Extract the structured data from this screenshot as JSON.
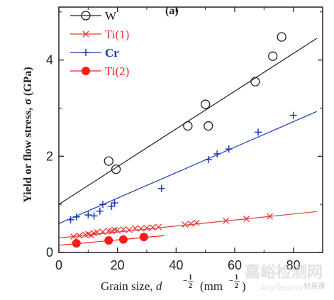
{
  "chart_data": {
    "type": "scatter",
    "panel_label": "(a)",
    "xlabel": "Grain size, d^-1/2 (mm^-1/2)",
    "xlabel_parts": {
      "main": "Grain size, ",
      "var": "d",
      "exp": "−",
      "frac_num": "1",
      "frac_den": "2",
      "unit_open": "(mm",
      "unit_close": ")"
    },
    "ylabel": "Yield or flow stress, σ (GPa)",
    "xlim": [
      0,
      90
    ],
    "ylim": [
      0,
      5.1
    ],
    "xticks": [
      0,
      20,
      40,
      60,
      80
    ],
    "yticks": [
      0,
      2,
      4
    ],
    "grid": false,
    "legend_position": "top-left",
    "series": [
      {
        "name": "W",
        "color": "#222222",
        "marker": "open-circle",
        "points": [
          [
            17,
            1.9
          ],
          [
            19.5,
            1.73
          ],
          [
            44,
            2.63
          ],
          [
            50,
            3.08
          ],
          [
            51,
            2.63
          ],
          [
            67,
            3.55
          ],
          [
            73,
            4.08
          ],
          [
            76,
            4.48
          ]
        ],
        "fit": [
          [
            0,
            1.0
          ],
          [
            88,
            4.45
          ]
        ]
      },
      {
        "name": "Ti(1)",
        "color": "#e53935",
        "marker": "x",
        "points": [
          [
            5,
            0.33
          ],
          [
            7,
            0.35
          ],
          [
            9,
            0.37
          ],
          [
            10,
            0.38
          ],
          [
            11,
            0.36
          ],
          [
            12,
            0.4
          ],
          [
            13,
            0.42
          ],
          [
            15,
            0.43
          ],
          [
            17,
            0.45
          ],
          [
            18,
            0.44
          ],
          [
            19,
            0.47
          ],
          [
            20,
            0.46
          ],
          [
            22,
            0.48
          ],
          [
            24,
            0.47
          ],
          [
            26,
            0.5
          ],
          [
            28,
            0.5
          ],
          [
            30,
            0.51
          ],
          [
            32,
            0.52
          ],
          [
            34,
            0.53
          ],
          [
            43,
            0.58
          ],
          [
            45,
            0.6
          ],
          [
            47,
            0.62
          ],
          [
            57,
            0.66
          ],
          [
            64,
            0.7
          ],
          [
            72,
            0.75
          ]
        ],
        "fit": [
          [
            0,
            0.3
          ],
          [
            88,
            0.85
          ]
        ]
      },
      {
        "name": "Cr",
        "color": "#1a3bb5",
        "marker": "plus",
        "points": [
          [
            4,
            0.68
          ],
          [
            6,
            0.74
          ],
          [
            10,
            0.78
          ],
          [
            12,
            0.76
          ],
          [
            14,
            0.86
          ],
          [
            15,
            1.0
          ],
          [
            18,
            0.96
          ],
          [
            19,
            1.03
          ],
          [
            35,
            1.33
          ],
          [
            51,
            1.93
          ],
          [
            54,
            2.05
          ],
          [
            58,
            2.15
          ],
          [
            68,
            2.5
          ],
          [
            80,
            2.85
          ]
        ],
        "fit": [
          [
            0,
            0.6
          ],
          [
            88,
            2.93
          ]
        ]
      },
      {
        "name": "Ti(2)",
        "color": "#ff1a1a",
        "marker": "filled-circle",
        "points": [
          [
            6,
            0.19
          ],
          [
            17,
            0.25
          ],
          [
            22,
            0.27
          ],
          [
            29,
            0.32
          ]
        ],
        "fit": [
          [
            0,
            0.15
          ],
          [
            36,
            0.35
          ]
        ]
      }
    ]
  },
  "watermark": {
    "cn_text": "嘉峪检测网",
    "small_text": "材易通",
    "en_text": "AnyTesting"
  }
}
